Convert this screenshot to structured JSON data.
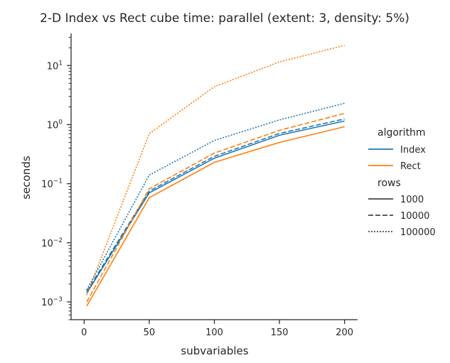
{
  "chart_data": {
    "type": "line",
    "title": "2-D Index vs Rect cube time: parallel (extent: 3, density: 5%)",
    "xlabel": "subvariables",
    "ylabel": "seconds",
    "xlim": [
      -10,
      210
    ],
    "ylim": [
      0.0005,
      35
    ],
    "yscale": "log",
    "grid": false,
    "legend_position": "right",
    "x_ticks": [
      {
        "value": 0,
        "label": "0"
      },
      {
        "value": 50,
        "label": "50"
      },
      {
        "value": 100,
        "label": "100"
      },
      {
        "value": 150,
        "label": "150"
      },
      {
        "value": 200,
        "label": "200"
      }
    ],
    "y_ticks": [
      {
        "value": 0.001,
        "base": "10",
        "exp": "−3"
      },
      {
        "value": 0.01,
        "base": "10",
        "exp": "−2"
      },
      {
        "value": 0.1,
        "base": "10",
        "exp": "−1"
      },
      {
        "value": 1,
        "base": "10",
        "exp": "0"
      },
      {
        "value": 10,
        "base": "10",
        "exp": "1"
      }
    ],
    "x": [
      2,
      50,
      100,
      150,
      200
    ],
    "series": [
      {
        "algorithm": "Index",
        "rows": "1000",
        "color": "#1f77b4",
        "dash": "solid",
        "values": [
          0.0014,
          0.07,
          0.27,
          0.66,
          1.15
        ]
      },
      {
        "algorithm": "Index",
        "rows": "10000",
        "color": "#1f77b4",
        "dash": "dashed",
        "values": [
          0.0015,
          0.075,
          0.29,
          0.71,
          1.25
        ]
      },
      {
        "algorithm": "Index",
        "rows": "100000",
        "color": "#1f77b4",
        "dash": "dotted",
        "values": [
          0.0016,
          0.14,
          0.54,
          1.2,
          2.3
        ]
      },
      {
        "algorithm": "Rect",
        "rows": "1000",
        "color": "#ff7f0e",
        "dash": "solid",
        "values": [
          0.00085,
          0.058,
          0.23,
          0.5,
          0.92
        ]
      },
      {
        "algorithm": "Rect",
        "rows": "10000",
        "color": "#ff7f0e",
        "dash": "dashed",
        "values": [
          0.001,
          0.082,
          0.33,
          0.8,
          1.55
        ]
      },
      {
        "algorithm": "Rect",
        "rows": "100000",
        "color": "#ff7f0e",
        "dash": "dotted",
        "values": [
          0.0013,
          0.7,
          4.4,
          11.5,
          22
        ]
      }
    ],
    "legend": {
      "algorithm_title": "algorithm",
      "algorithm_items": [
        {
          "label": "Index",
          "color": "#1f77b4"
        },
        {
          "label": "Rect",
          "color": "#ff7f0e"
        }
      ],
      "rows_title": "rows",
      "rows_items": [
        {
          "label": "1000",
          "dash": "solid"
        },
        {
          "label": "10000",
          "dash": "dashed"
        },
        {
          "label": "100000",
          "dash": "dotted"
        }
      ]
    }
  }
}
